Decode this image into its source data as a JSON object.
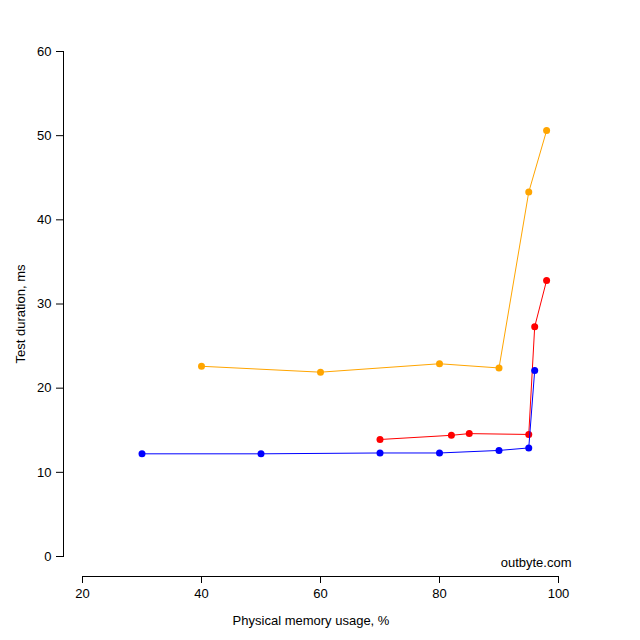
{
  "chart_data": {
    "type": "line",
    "x_label": "Physical memory usage, %",
    "y_label": "Test duration, ms",
    "annotations": [
      "outbyte.com"
    ],
    "xlim": [
      20,
      100
    ],
    "xticks": [
      20,
      40,
      60,
      80,
      100
    ],
    "ylim": [
      0,
      60
    ],
    "yticks": [
      0,
      10,
      20,
      30,
      40,
      50,
      60
    ],
    "grid": false,
    "series": [
      {
        "color": "#FFA500",
        "marker": "circle",
        "line_style": "solid",
        "x": [
          40,
          60,
          80,
          90,
          95,
          98
        ],
        "values": [
          22.6,
          21.9,
          22.9,
          22.4,
          43.3,
          50.6
        ]
      },
      {
        "color": "#FF0000",
        "marker": "circle",
        "line_style": "solid",
        "x": [
          70,
          82,
          85,
          95,
          96,
          98
        ],
        "values": [
          13.9,
          14.4,
          14.6,
          14.5,
          27.3,
          32.8
        ]
      },
      {
        "color": "#0000FF",
        "marker": "circle",
        "line_style": "solid",
        "x": [
          30,
          50,
          70,
          80,
          90,
          95,
          96
        ],
        "values": [
          12.2,
          12.2,
          12.3,
          12.3,
          12.6,
          12.9,
          22.1
        ]
      }
    ]
  }
}
